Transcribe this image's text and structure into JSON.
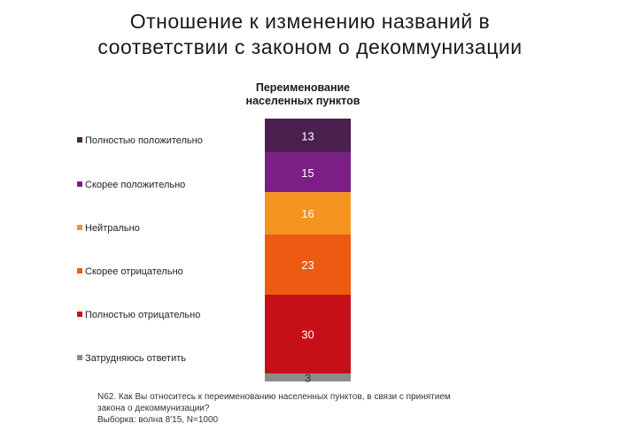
{
  "title_lines": [
    "Отношение к изменению названий в",
    "соответствии с законом о декоммунизации"
  ],
  "footnote": {
    "question": "N62. Как Вы относитесь к переименованию населенных пунктов, в связи с принятием",
    "question_cont": "закона о декоммунизации?",
    "sample": "Выборка: волна 8'15, N=1000"
  },
  "chart_data": {
    "type": "bar",
    "stacked": true,
    "orientation": "vertical",
    "categories": [
      "Переименование населенных пунктов"
    ],
    "category_label_lines": [
      "Переименование",
      "населенных пунктов"
    ],
    "series": [
      {
        "name": "Полностью положительно",
        "values": [
          13
        ],
        "color": "#4b1f4e",
        "label_color": "#ffffff"
      },
      {
        "name": "Скорее положительно",
        "values": [
          15
        ],
        "color": "#7b1f86",
        "label_color": "#ffffff"
      },
      {
        "name": "Нейтрально",
        "values": [
          16
        ],
        "color": "#f4941f",
        "label_color": "#ffffff"
      },
      {
        "name": "Скорее отрицательно",
        "values": [
          23
        ],
        "color": "#ee5a12",
        "label_color": "#ffffff"
      },
      {
        "name": "Полностью отрицательно",
        "values": [
          30
        ],
        "color": "#c70f17",
        "label_color": "#ffffff"
      },
      {
        "name": "Затрудняюсь ответить",
        "values": [
          3
        ],
        "color": "#8c8c8c",
        "label_color": "#333333"
      }
    ],
    "ylim": [
      0,
      100
    ],
    "legend_position": "left",
    "data_labels": true,
    "grid": false
  }
}
